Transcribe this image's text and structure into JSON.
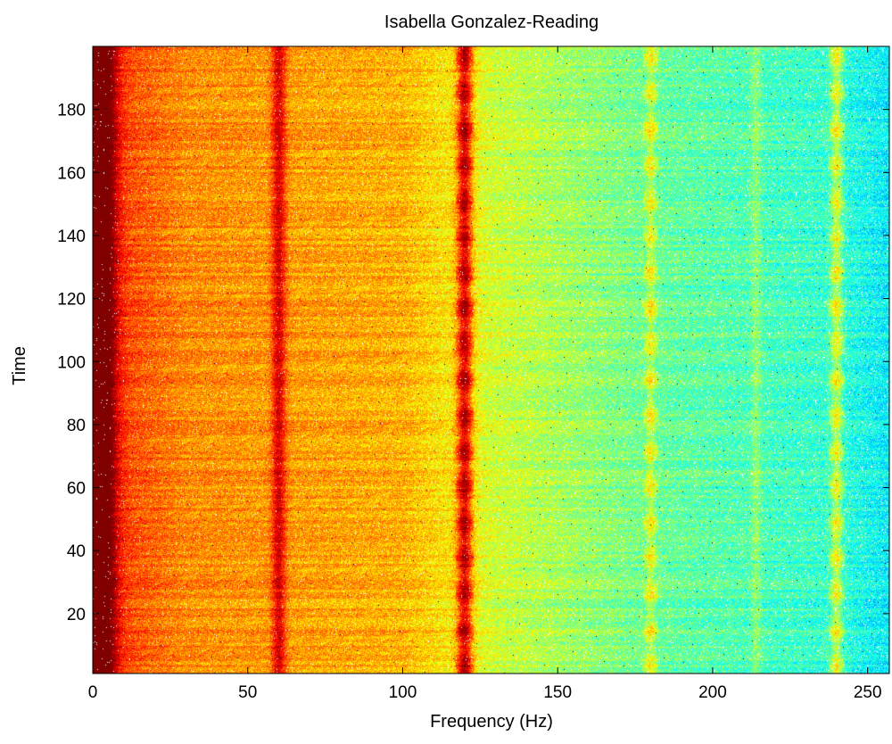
{
  "chart_data": {
    "type": "heatmap",
    "title": "Isabella Gonzalez-Reading",
    "xlabel": "Frequency (Hz)",
    "ylabel": "Time",
    "xlim": [
      0,
      257
    ],
    "ylim": [
      1,
      200
    ],
    "x_ticks": [
      0,
      50,
      100,
      150,
      200,
      250
    ],
    "y_ticks": [
      20,
      40,
      60,
      80,
      100,
      120,
      140,
      160,
      180
    ],
    "colormap": "jet",
    "color_levels_description_free": true,
    "bands": [
      {
        "name": "",
        "frequency": 2,
        "strength": 0.72,
        "width": 5
      },
      {
        "name": "",
        "frequency": 60,
        "strength": 0.34,
        "width": 2.2
      },
      {
        "name": "",
        "frequency": 120,
        "strength": 0.55,
        "width": 2.6
      },
      {
        "name": "",
        "frequency": 180,
        "strength": 0.2,
        "width": 1.8
      },
      {
        "name": "",
        "frequency": 214,
        "strength": 0.12,
        "width": 1.6
      },
      {
        "name": "",
        "frequency": 240,
        "strength": 0.3,
        "width": 2.0
      }
    ],
    "background_trend": [
      {
        "frequency": 0,
        "level": 0.84
      },
      {
        "frequency": 30,
        "level": 0.74
      },
      {
        "frequency": 100,
        "level": 0.7
      },
      {
        "frequency": 130,
        "level": 0.58
      },
      {
        "frequency": 180,
        "level": 0.48
      },
      {
        "frequency": 240,
        "level": 0.42
      },
      {
        "frequency": 257,
        "level": 0.36
      }
    ]
  }
}
